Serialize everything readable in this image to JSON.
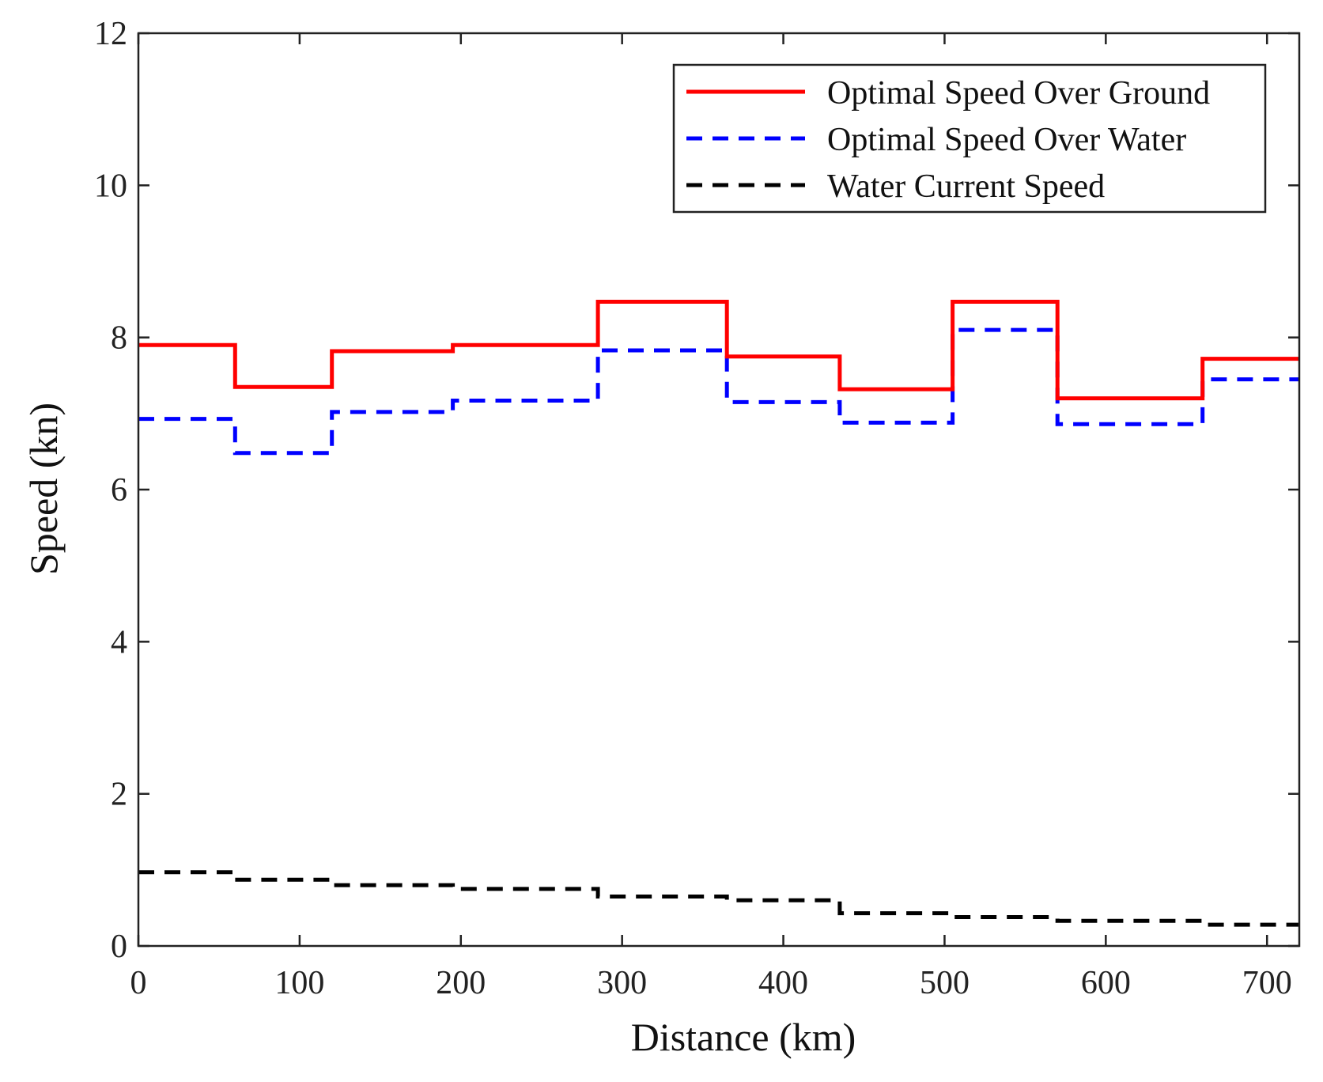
{
  "chart_data": {
    "type": "line",
    "step": true,
    "title": "",
    "xlabel": "Distance (km)",
    "ylabel": "Speed (kn)",
    "xlim": [
      0,
      720
    ],
    "ylim": [
      0,
      12
    ],
    "xticks": [
      0,
      100,
      200,
      300,
      400,
      500,
      600,
      700
    ],
    "yticks": [
      0,
      2,
      4,
      6,
      8,
      10,
      12
    ],
    "grid": false,
    "legend_position": "top-right",
    "x_breakpoints": [
      0,
      60,
      120,
      195,
      285,
      365,
      435,
      505,
      570,
      660,
      720
    ],
    "series": [
      {
        "name": "Optimal Speed Over Ground",
        "style": "solid",
        "color": "#ff0000",
        "values": [
          7.9,
          7.35,
          7.82,
          7.9,
          8.47,
          7.75,
          7.32,
          8.47,
          7.2,
          7.72
        ]
      },
      {
        "name": "Optimal Speed Over Water",
        "style": "dashed",
        "color": "#0000ff",
        "values": [
          6.93,
          6.48,
          7.02,
          7.17,
          7.83,
          7.15,
          6.88,
          8.1,
          6.86,
          7.45
        ]
      },
      {
        "name": "Water Current Speed",
        "style": "dashed",
        "color": "#000000",
        "values": [
          0.97,
          0.87,
          0.8,
          0.75,
          0.65,
          0.6,
          0.43,
          0.38,
          0.33,
          0.28
        ]
      }
    ]
  }
}
